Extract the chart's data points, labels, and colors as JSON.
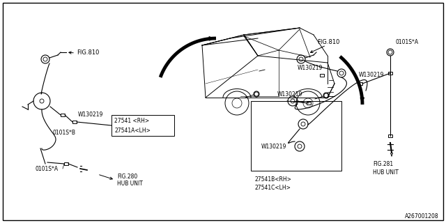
{
  "bg_color": "#ffffff",
  "line_color": "#000000",
  "diagram_id": "A267001208",
  "labels": {
    "fig810_left": "FIG.810",
    "fig810_right": "FIG.810",
    "fig280_line1": "FIG.280",
    "fig280_line2": "HUB UNIT",
    "fig281_line1": "FIG.281",
    "fig281_line2": "HUB UNIT",
    "part_front_rh": "27541 <RH>",
    "part_front_lh": "27541A<LH>",
    "part_rear_rh": "27541B<RH>",
    "part_rear_lh": "27541C<LH>",
    "w130219": "W130219",
    "o_left_b": "0101S*B",
    "o_left_a": "0101S*A",
    "o_right_a": "0101S*A"
  },
  "font_size": 6.0,
  "font_size_id": 5.5
}
